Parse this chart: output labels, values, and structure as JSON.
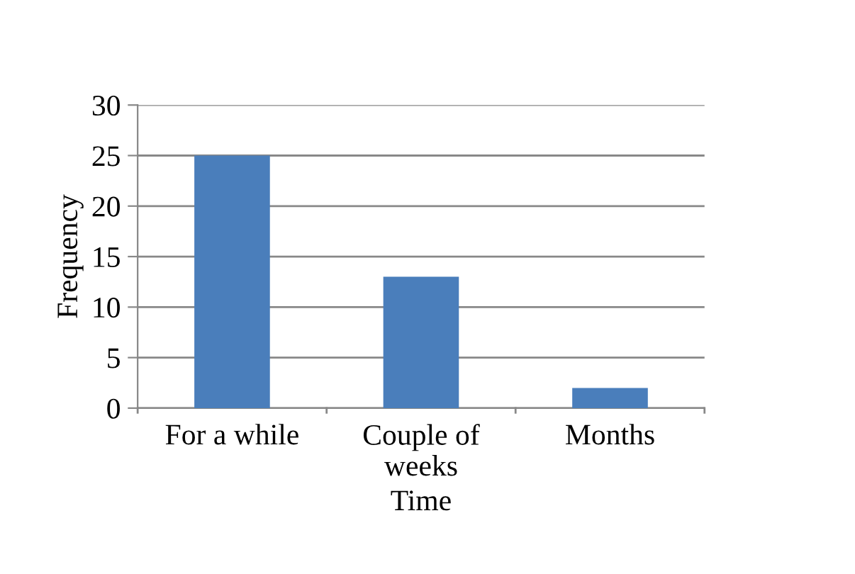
{
  "chart_data": {
    "type": "bar",
    "xlabel": "Time",
    "ylabel": "Frequency",
    "categories": [
      "For a while",
      "Couple of\nweeks",
      "Months"
    ],
    "values": [
      25,
      13,
      2
    ],
    "color": "#4a7ebb",
    "ylim": [
      0,
      30
    ],
    "yticks": [
      0,
      5,
      10,
      15,
      20,
      25,
      30
    ],
    "grid": "y"
  }
}
